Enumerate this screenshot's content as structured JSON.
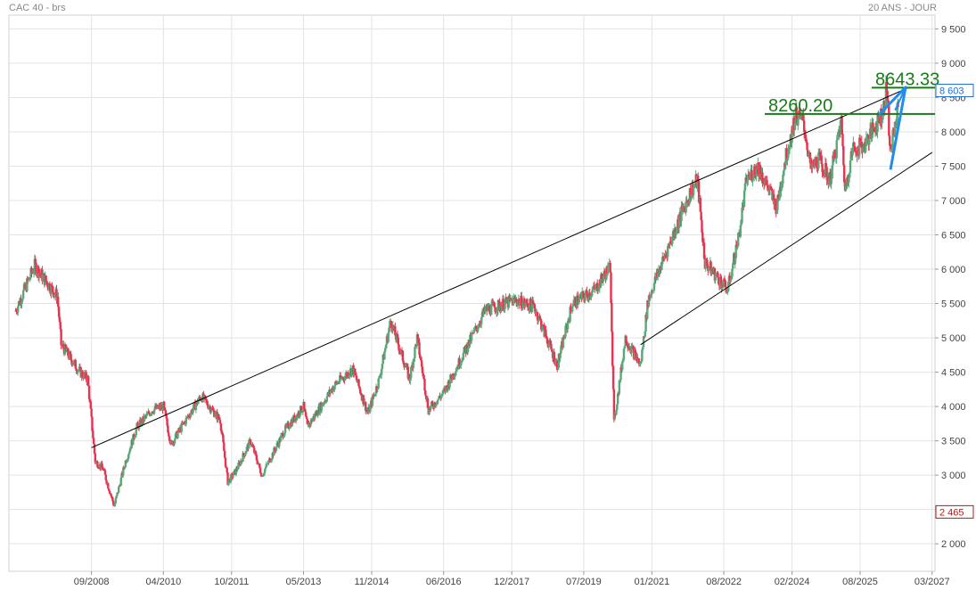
{
  "header": {
    "title": "CAC 40 - brs",
    "range": "20 ANS - JOUR"
  },
  "colors": {
    "up": "#5aa87a",
    "down": "#e8334f",
    "grid": "#e3e3e3",
    "trendline": "#000000",
    "level": "#1a7a1a",
    "wedge": "#1e8cf0",
    "high_badge": "#1e6fd8",
    "low_badge": "#b01818"
  },
  "chart_data": {
    "type": "candlestick",
    "title": "CAC 40 - brs",
    "timeframe": "20 ANS - JOUR",
    "ylim": [
      1600,
      9700
    ],
    "y_ticks": [
      {
        "value": 2000,
        "label": "2 000"
      },
      {
        "value": 2500,
        "label": "2 500"
      },
      {
        "value": 3000,
        "label": "3 000"
      },
      {
        "value": 3500,
        "label": "3 500"
      },
      {
        "value": 4000,
        "label": "4 000"
      },
      {
        "value": 4500,
        "label": "4 500"
      },
      {
        "value": 5000,
        "label": "5 000"
      },
      {
        "value": 5500,
        "label": "5 500"
      },
      {
        "value": 6000,
        "label": "6 000"
      },
      {
        "value": 6500,
        "label": "6 500"
      },
      {
        "value": 7000,
        "label": "7 000"
      },
      {
        "value": 7500,
        "label": "7 500"
      },
      {
        "value": 8000,
        "label": "8 000"
      },
      {
        "value": 8500,
        "label": "8 500"
      },
      {
        "value": 9000,
        "label": "9 000"
      },
      {
        "value": 9500,
        "label": "9 500"
      }
    ],
    "x_ticks": [
      {
        "date": "2008-09",
        "label": "09/2008"
      },
      {
        "date": "2010-04",
        "label": "04/2010"
      },
      {
        "date": "2011-10",
        "label": "10/2011"
      },
      {
        "date": "2013-05",
        "label": "05/2013"
      },
      {
        "date": "2014-11",
        "label": "11/2014"
      },
      {
        "date": "2016-06",
        "label": "06/2016"
      },
      {
        "date": "2017-12",
        "label": "12/2017"
      },
      {
        "date": "2019-07",
        "label": "07/2019"
      },
      {
        "date": "2021-01",
        "label": "01/2021"
      },
      {
        "date": "2022-08",
        "label": "08/2022"
      },
      {
        "date": "2024-02",
        "label": "02/2024"
      },
      {
        "date": "2025-08",
        "label": "08/2025"
      },
      {
        "date": "2027-03",
        "label": "03/2027"
      }
    ],
    "price_path": [
      [
        "2007-01",
        5400
      ],
      [
        "2007-06",
        6050
      ],
      [
        "2007-08",
        5900
      ],
      [
        "2007-12",
        5600
      ],
      [
        "2008-01",
        4900
      ],
      [
        "2008-06",
        4500
      ],
      [
        "2008-08",
        4400
      ],
      [
        "2008-10",
        3200
      ],
      [
        "2008-12",
        3100
      ],
      [
        "2009-03",
        2550
      ],
      [
        "2009-06",
        3200
      ],
      [
        "2009-09",
        3700
      ],
      [
        "2010-01",
        3950
      ],
      [
        "2010-04",
        4000
      ],
      [
        "2010-06",
        3450
      ],
      [
        "2010-11",
        3900
      ],
      [
        "2011-02",
        4150
      ],
      [
        "2011-07",
        3800
      ],
      [
        "2011-09",
        2900
      ],
      [
        "2011-11",
        3050
      ],
      [
        "2012-03",
        3500
      ],
      [
        "2012-06",
        3000
      ],
      [
        "2012-12",
        3650
      ],
      [
        "2013-05",
        4000
      ],
      [
        "2013-06",
        3700
      ],
      [
        "2014-01",
        4300
      ],
      [
        "2014-06",
        4550
      ],
      [
        "2014-10",
        3900
      ],
      [
        "2015-01",
        4400
      ],
      [
        "2015-04",
        5250
      ],
      [
        "2015-09",
        4400
      ],
      [
        "2015-11",
        5000
      ],
      [
        "2016-02",
        3950
      ],
      [
        "2016-06",
        4200
      ],
      [
        "2016-12",
        4850
      ],
      [
        "2017-05",
        5400
      ],
      [
        "2018-01",
        5550
      ],
      [
        "2018-06",
        5450
      ],
      [
        "2018-12",
        4600
      ],
      [
        "2019-04",
        5500
      ],
      [
        "2019-07",
        5600
      ],
      [
        "2019-10",
        5700
      ],
      [
        "2020-02",
        6050
      ],
      [
        "2020-03",
        3750
      ],
      [
        "2020-06",
        5000
      ],
      [
        "2020-10",
        4600
      ],
      [
        "2020-12",
        5550
      ],
      [
        "2021-03",
        6000
      ],
      [
        "2021-08",
        6700
      ],
      [
        "2021-11",
        7100
      ],
      [
        "2022-01",
        7300
      ],
      [
        "2022-03",
        6100
      ],
      [
        "2022-06",
        5900
      ],
      [
        "2022-09",
        5700
      ],
      [
        "2022-12",
        6500
      ],
      [
        "2023-02",
        7300
      ],
      [
        "2023-05",
        7500
      ],
      [
        "2023-10",
        6900
      ],
      [
        "2023-12",
        7550
      ],
      [
        "2024-03",
        8250
      ],
      [
        "2024-05",
        8150
      ],
      [
        "2024-07",
        7450
      ],
      [
        "2024-09",
        7600
      ],
      [
        "2024-12",
        7300
      ],
      [
        "2025-03",
        8150
      ],
      [
        "2025-04",
        7150
      ],
      [
        "2025-06",
        7750
      ],
      [
        "2025-09",
        7800
      ],
      [
        "2025-12",
        8100
      ],
      [
        "2026-02",
        8300
      ],
      [
        "2026-03",
        8650
      ],
      [
        "2026-04",
        7700
      ],
      [
        "2026-06",
        8350
      ]
    ],
    "annotations": [
      {
        "type": "level",
        "label": "8260.20",
        "value": 8260.2
      },
      {
        "type": "level",
        "label": "8643.33",
        "value": 8643.33
      }
    ],
    "trendlines": [
      {
        "name": "upper",
        "from": [
          "2008-09",
          3400
        ],
        "to": [
          "2026-09",
          8650
        ]
      },
      {
        "name": "lower",
        "from": [
          "2020-10",
          4900
        ],
        "to": [
          "2027-03",
          7700
        ]
      }
    ],
    "price_badges": [
      {
        "label": "8 603",
        "value": 8603
      },
      {
        "label": "2 465",
        "value": 2465
      }
    ]
  }
}
